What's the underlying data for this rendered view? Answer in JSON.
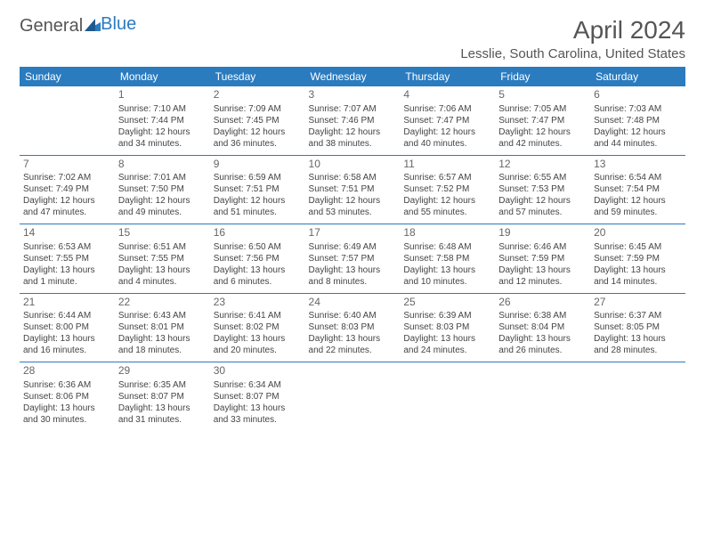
{
  "logo": {
    "textA": "General",
    "textB": "Blue"
  },
  "title": "April 2024",
  "location": "Lesslie, South Carolina, United States",
  "colors": {
    "headerBg": "#2b7bbf",
    "headerText": "#ffffff",
    "rule": "#2b7bbf",
    "bodyText": "#444444",
    "titleText": "#555555"
  },
  "dayNames": [
    "Sunday",
    "Monday",
    "Tuesday",
    "Wednesday",
    "Thursday",
    "Friday",
    "Saturday"
  ],
  "weeks": [
    [
      null,
      {
        "n": "1",
        "sr": "7:10 AM",
        "ss": "7:44 PM",
        "dl1": "12 hours",
        "dl2": "and 34 minutes."
      },
      {
        "n": "2",
        "sr": "7:09 AM",
        "ss": "7:45 PM",
        "dl1": "12 hours",
        "dl2": "and 36 minutes."
      },
      {
        "n": "3",
        "sr": "7:07 AM",
        "ss": "7:46 PM",
        "dl1": "12 hours",
        "dl2": "and 38 minutes."
      },
      {
        "n": "4",
        "sr": "7:06 AM",
        "ss": "7:47 PM",
        "dl1": "12 hours",
        "dl2": "and 40 minutes."
      },
      {
        "n": "5",
        "sr": "7:05 AM",
        "ss": "7:47 PM",
        "dl1": "12 hours",
        "dl2": "and 42 minutes."
      },
      {
        "n": "6",
        "sr": "7:03 AM",
        "ss": "7:48 PM",
        "dl1": "12 hours",
        "dl2": "and 44 minutes."
      }
    ],
    [
      {
        "n": "7",
        "sr": "7:02 AM",
        "ss": "7:49 PM",
        "dl1": "12 hours",
        "dl2": "and 47 minutes."
      },
      {
        "n": "8",
        "sr": "7:01 AM",
        "ss": "7:50 PM",
        "dl1": "12 hours",
        "dl2": "and 49 minutes."
      },
      {
        "n": "9",
        "sr": "6:59 AM",
        "ss": "7:51 PM",
        "dl1": "12 hours",
        "dl2": "and 51 minutes."
      },
      {
        "n": "10",
        "sr": "6:58 AM",
        "ss": "7:51 PM",
        "dl1": "12 hours",
        "dl2": "and 53 minutes."
      },
      {
        "n": "11",
        "sr": "6:57 AM",
        "ss": "7:52 PM",
        "dl1": "12 hours",
        "dl2": "and 55 minutes."
      },
      {
        "n": "12",
        "sr": "6:55 AM",
        "ss": "7:53 PM",
        "dl1": "12 hours",
        "dl2": "and 57 minutes."
      },
      {
        "n": "13",
        "sr": "6:54 AM",
        "ss": "7:54 PM",
        "dl1": "12 hours",
        "dl2": "and 59 minutes."
      }
    ],
    [
      {
        "n": "14",
        "sr": "6:53 AM",
        "ss": "7:55 PM",
        "dl1": "13 hours",
        "dl2": "and 1 minute."
      },
      {
        "n": "15",
        "sr": "6:51 AM",
        "ss": "7:55 PM",
        "dl1": "13 hours",
        "dl2": "and 4 minutes."
      },
      {
        "n": "16",
        "sr": "6:50 AM",
        "ss": "7:56 PM",
        "dl1": "13 hours",
        "dl2": "and 6 minutes."
      },
      {
        "n": "17",
        "sr": "6:49 AM",
        "ss": "7:57 PM",
        "dl1": "13 hours",
        "dl2": "and 8 minutes."
      },
      {
        "n": "18",
        "sr": "6:48 AM",
        "ss": "7:58 PM",
        "dl1": "13 hours",
        "dl2": "and 10 minutes."
      },
      {
        "n": "19",
        "sr": "6:46 AM",
        "ss": "7:59 PM",
        "dl1": "13 hours",
        "dl2": "and 12 minutes."
      },
      {
        "n": "20",
        "sr": "6:45 AM",
        "ss": "7:59 PM",
        "dl1": "13 hours",
        "dl2": "and 14 minutes."
      }
    ],
    [
      {
        "n": "21",
        "sr": "6:44 AM",
        "ss": "8:00 PM",
        "dl1": "13 hours",
        "dl2": "and 16 minutes."
      },
      {
        "n": "22",
        "sr": "6:43 AM",
        "ss": "8:01 PM",
        "dl1": "13 hours",
        "dl2": "and 18 minutes."
      },
      {
        "n": "23",
        "sr": "6:41 AM",
        "ss": "8:02 PM",
        "dl1": "13 hours",
        "dl2": "and 20 minutes."
      },
      {
        "n": "24",
        "sr": "6:40 AM",
        "ss": "8:03 PM",
        "dl1": "13 hours",
        "dl2": "and 22 minutes."
      },
      {
        "n": "25",
        "sr": "6:39 AM",
        "ss": "8:03 PM",
        "dl1": "13 hours",
        "dl2": "and 24 minutes."
      },
      {
        "n": "26",
        "sr": "6:38 AM",
        "ss": "8:04 PM",
        "dl1": "13 hours",
        "dl2": "and 26 minutes."
      },
      {
        "n": "27",
        "sr": "6:37 AM",
        "ss": "8:05 PM",
        "dl1": "13 hours",
        "dl2": "and 28 minutes."
      }
    ],
    [
      {
        "n": "28",
        "sr": "6:36 AM",
        "ss": "8:06 PM",
        "dl1": "13 hours",
        "dl2": "and 30 minutes."
      },
      {
        "n": "29",
        "sr": "6:35 AM",
        "ss": "8:07 PM",
        "dl1": "13 hours",
        "dl2": "and 31 minutes."
      },
      {
        "n": "30",
        "sr": "6:34 AM",
        "ss": "8:07 PM",
        "dl1": "13 hours",
        "dl2": "and 33 minutes."
      },
      null,
      null,
      null,
      null
    ]
  ],
  "labels": {
    "sunrise": "Sunrise:",
    "sunset": "Sunset:",
    "daylight": "Daylight:"
  }
}
